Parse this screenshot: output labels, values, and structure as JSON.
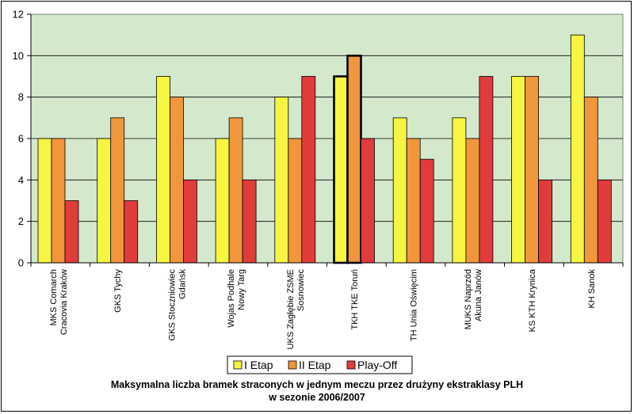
{
  "chart_data": {
    "type": "bar",
    "title_lines": [
      "Maksymalna liczba bramek straconych w jednym meczu przez drużyny ekstraklasy PLH",
      "w sezonie 2006/2007"
    ],
    "categories": [
      [
        "MKS Comarch",
        "Cracovia Kraków"
      ],
      [
        "GKS Tychy"
      ],
      [
        "GKS Stoczniowiec",
        "Gdańsk"
      ],
      [
        "Wojas Podhale",
        "Nowy Targ"
      ],
      [
        "UKS Zagłębie ZSME",
        "Sosnowiec"
      ],
      [
        "TKH TKE Toruń"
      ],
      [
        "TH Unia Oświęcim"
      ],
      [
        "MUKS Naprzód",
        "Akuna Janów"
      ],
      [
        "KS KTH Krynica"
      ],
      [
        "KH Sanok"
      ]
    ],
    "series": [
      {
        "name": "I Etap",
        "color": "#f5f542",
        "values": [
          6,
          6,
          9,
          6,
          8,
          9,
          7,
          7,
          9,
          11
        ]
      },
      {
        "name": "II Etap",
        "color": "#f0963c",
        "values": [
          6,
          7,
          8,
          7,
          6,
          10,
          6,
          6,
          9,
          8
        ]
      },
      {
        "name": "Play-Off",
        "color": "#e03c3c",
        "values": [
          3,
          3,
          4,
          4,
          9,
          6,
          5,
          9,
          4,
          4
        ]
      }
    ],
    "highlighted_category_index": 5,
    "yticks": [
      0,
      2,
      4,
      6,
      8,
      10,
      12
    ],
    "ylim": [
      0,
      12
    ],
    "grid": true,
    "plot_background": "#d4e8cc",
    "legend_position": "bottom-center"
  }
}
